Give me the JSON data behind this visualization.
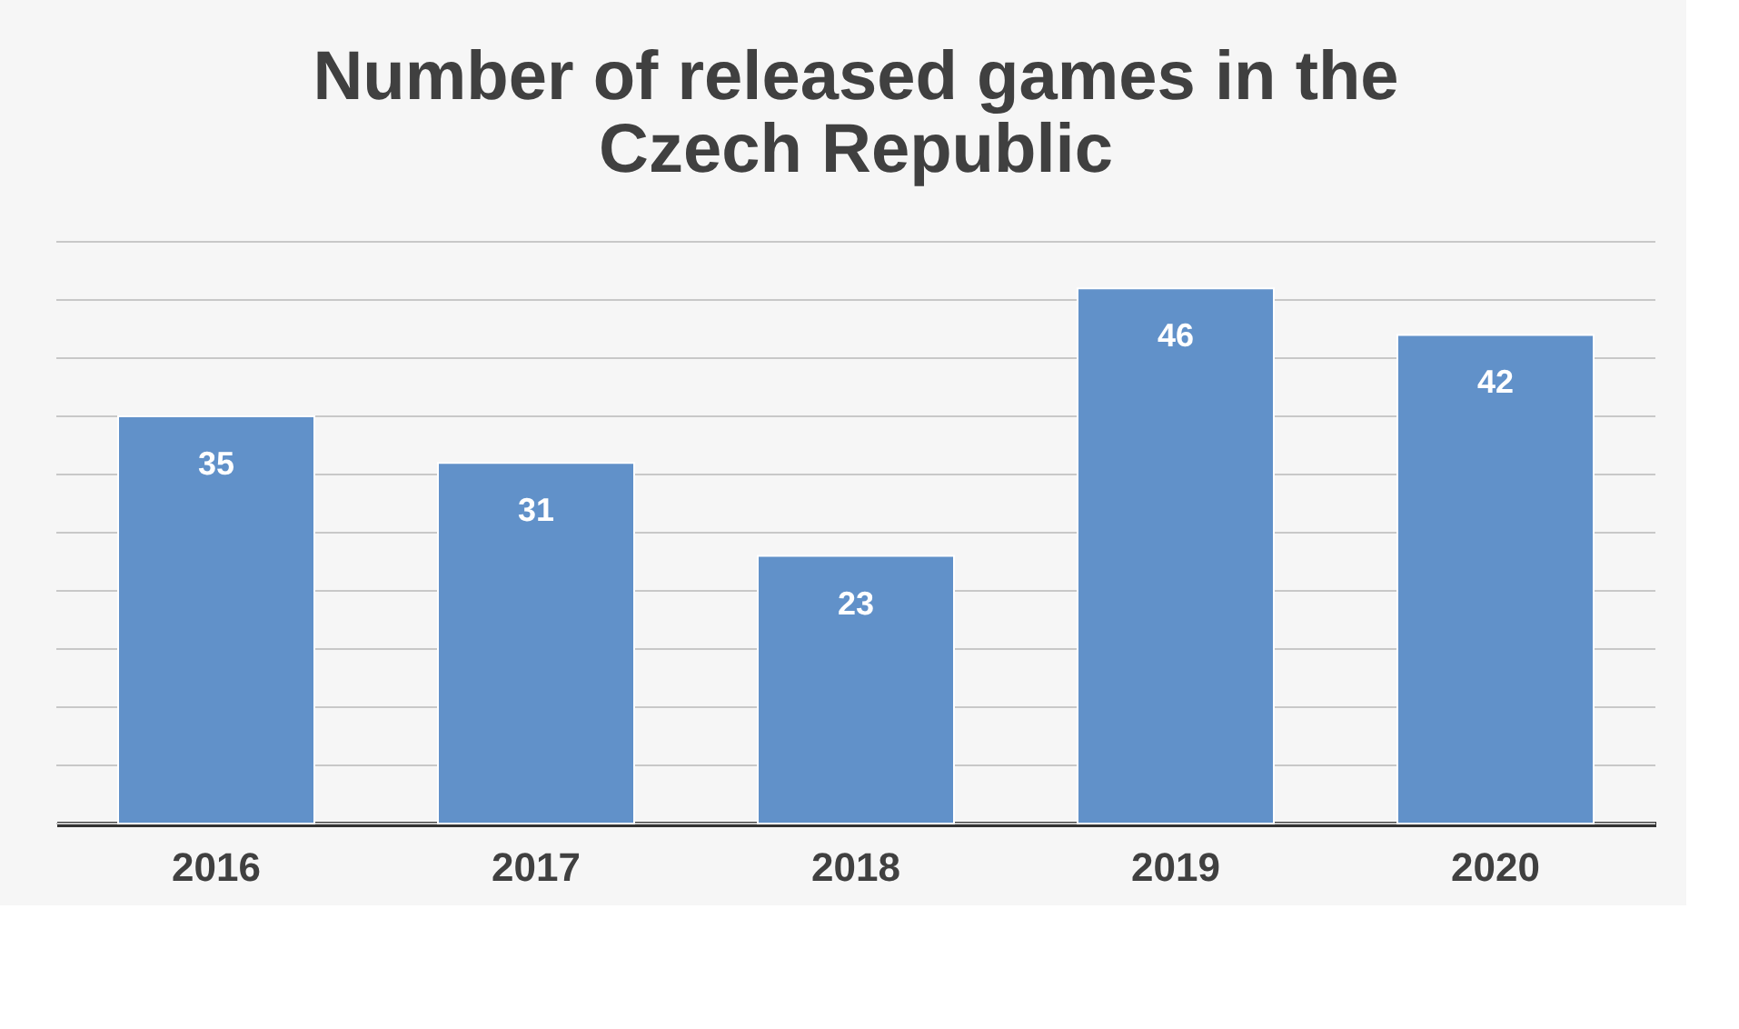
{
  "chart_data": {
    "type": "bar",
    "title": [
      "Number of released games in the",
      "Czech Republic"
    ],
    "categories": [
      "2016",
      "2017",
      "2018",
      "2019",
      "2020"
    ],
    "values": [
      35,
      31,
      23,
      46,
      42
    ],
    "color": "#6191c9",
    "ylim": [
      0,
      50
    ],
    "yticks": [
      {
        "value": 0,
        "label": null
      },
      {
        "value": 5,
        "label": null
      },
      {
        "value": 10,
        "label": null
      },
      {
        "value": 15,
        "label": null
      },
      {
        "value": 20,
        "label": null
      },
      {
        "value": 25,
        "label": null
      },
      {
        "value": 30,
        "label": null
      },
      {
        "value": 35,
        "label": null
      },
      {
        "value": 40,
        "label": null
      },
      {
        "value": 45,
        "label": null
      },
      {
        "value": 50,
        "label": null
      }
    ],
    "grid": "y",
    "tick_labels": "x",
    "data_labels": true
  }
}
